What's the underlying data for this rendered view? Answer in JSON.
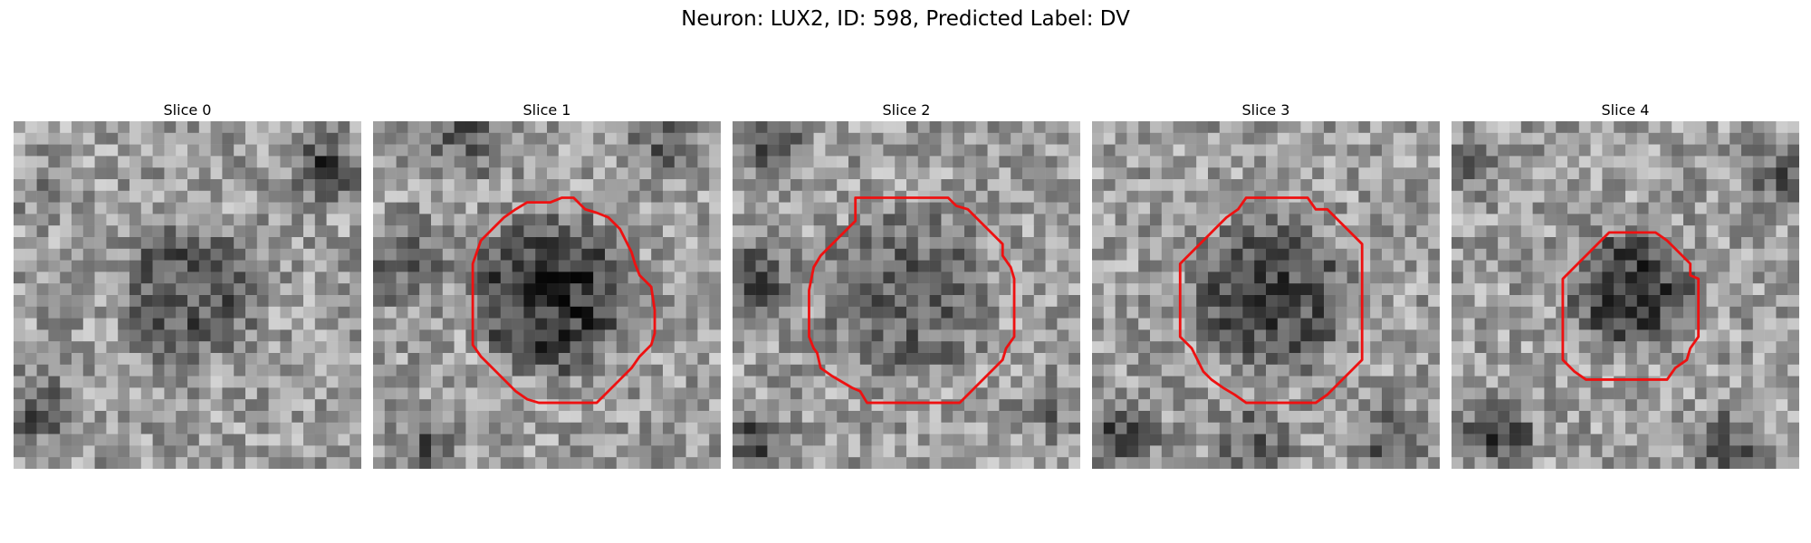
{
  "figure": {
    "title": "Neuron: LUX2, ID: 598, Predicted Label: DV"
  },
  "slices": [
    {
      "title": "Slice 0",
      "has_contour": false
    },
    {
      "title": "Slice 1",
      "has_contour": true
    },
    {
      "title": "Slice 2",
      "has_contour": true
    },
    {
      "title": "Slice 3",
      "has_contour": true
    },
    {
      "title": "Slice 4",
      "has_contour": true
    }
  ],
  "colors": {
    "contour": "#ee1111"
  }
}
